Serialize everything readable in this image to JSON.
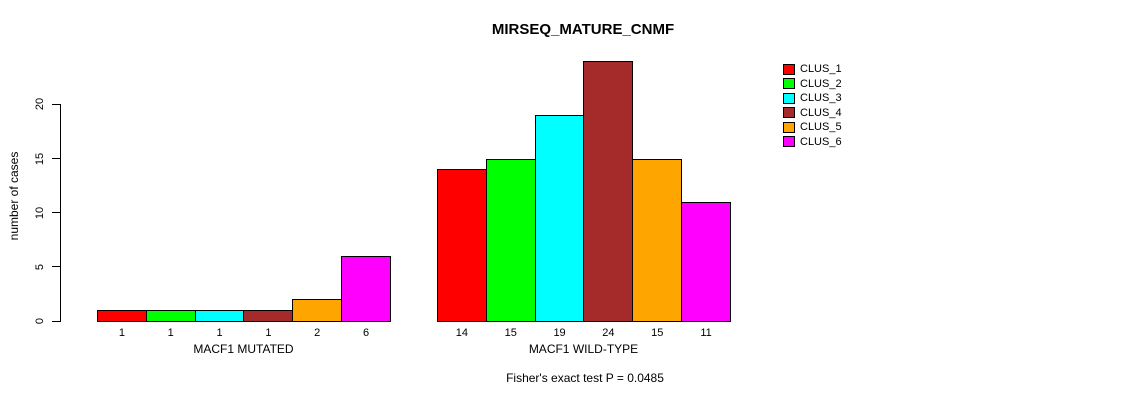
{
  "title": "MIRSEQ_MATURE_CNMF",
  "chart_data": {
    "type": "bar",
    "title": "MIRSEQ_MATURE_CNMF",
    "ylabel": "number of cases",
    "xlabel": "",
    "ylim": [
      0,
      20
    ],
    "yticks": [
      0,
      5,
      10,
      15,
      20
    ],
    "grid": false,
    "legend_position": "right-outside",
    "series_names": [
      "CLUS_1",
      "CLUS_2",
      "CLUS_3",
      "CLUS_4",
      "CLUS_5",
      "CLUS_6"
    ],
    "colors": [
      "#FF0000",
      "#00FF00",
      "#00FFFF",
      "#A52A2A",
      "#FFA500",
      "#FF00FF"
    ],
    "groups": [
      {
        "label": "MACF1 MUTATED",
        "values": [
          1,
          1,
          1,
          1,
          2,
          6
        ]
      },
      {
        "label": "MACF1 WILD-TYPE",
        "values": [
          14,
          15,
          19,
          24,
          15,
          11
        ]
      }
    ],
    "annotation": "Fisher's exact test P = 0.0485"
  }
}
